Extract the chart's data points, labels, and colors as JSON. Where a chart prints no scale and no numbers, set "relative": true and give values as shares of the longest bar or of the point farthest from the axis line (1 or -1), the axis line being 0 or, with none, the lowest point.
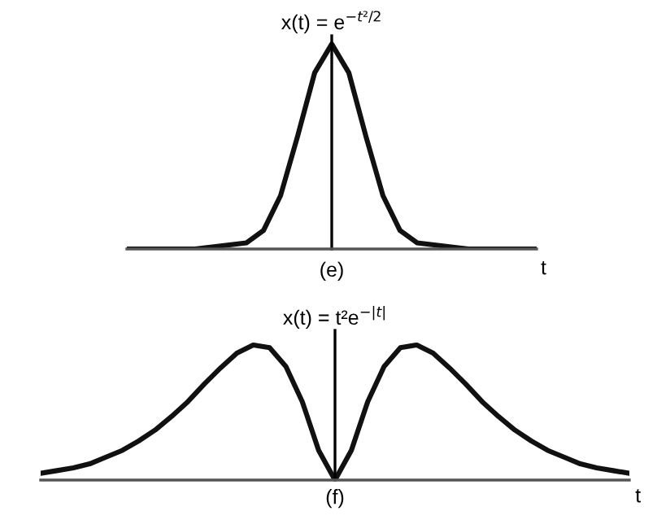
{
  "chart_data": [
    {
      "type": "line",
      "title": "x(t) = e$^{−t²/2}$",
      "xlabel": "t",
      "annotations": [
        "(e)"
      ],
      "relative": true,
      "color": "#111111",
      "categories": [
        null,
        null,
        null,
        null,
        null,
        null,
        null,
        null,
        null,
        null,
        null,
        null,
        null,
        null,
        null,
        null,
        null,
        null,
        null,
        null,
        null,
        null,
        null,
        null,
        null
      ],
      "values": [
        0,
        0,
        0,
        0,
        0,
        0.01,
        0.02,
        0.03,
        0.09,
        0.26,
        0.55,
        0.86,
        1,
        0.86,
        0.55,
        0.26,
        0.09,
        0.03,
        0.02,
        0.01,
        0,
        0,
        0,
        0,
        0
      ]
    },
    {
      "type": "line",
      "title": "x(t) = t²e$^{−|t|}$",
      "xlabel": "t",
      "annotations": [
        "(f)"
      ],
      "relative": true,
      "color": "#111111",
      "categories": [
        null,
        null,
        null,
        null,
        null,
        null,
        null,
        null,
        null,
        null,
        null,
        null,
        null,
        null,
        null,
        null,
        null,
        null,
        null,
        null,
        null,
        null,
        null,
        null,
        null,
        null,
        null,
        null,
        null,
        null,
        null,
        null,
        null,
        null,
        null,
        null,
        null
      ],
      "values": [
        0.05,
        0.07,
        0.09,
        0.12,
        0.17,
        0.22,
        0.29,
        0.37,
        0.47,
        0.58,
        0.71,
        0.83,
        0.94,
        1,
        0.98,
        0.84,
        0.58,
        0.22,
        0,
        0.22,
        0.58,
        0.84,
        0.98,
        1,
        0.94,
        0.83,
        0.71,
        0.58,
        0.47,
        0.37,
        0.29,
        0.22,
        0.17,
        0.12,
        0.09,
        0.07,
        0.05
      ]
    }
  ]
}
